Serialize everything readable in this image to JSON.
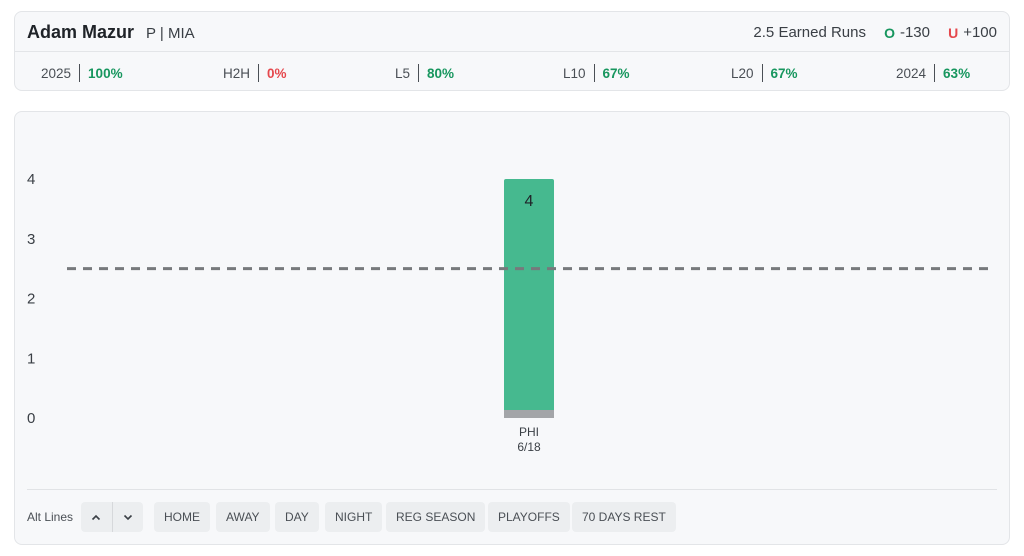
{
  "header": {
    "player_name": "Adam Mazur",
    "player_meta": "P | MIA",
    "prop_line": "2.5 Earned Runs",
    "over_icon": "O",
    "over_odds": "-130",
    "under_icon": "U",
    "under_odds": "+100"
  },
  "stats": [
    {
      "label": "2025",
      "value": "100%",
      "color": "#17965e"
    },
    {
      "label": "H2H",
      "value": "0%",
      "color": "#e5484d"
    },
    {
      "label": "L5",
      "value": "80%",
      "color": "#17965e"
    },
    {
      "label": "L10",
      "value": "67%",
      "color": "#17965e"
    },
    {
      "label": "L20",
      "value": "67%",
      "color": "#17965e"
    },
    {
      "label": "2024",
      "value": "63%",
      "color": "#17965e"
    }
  ],
  "colors": {
    "over": "#17965e",
    "under": "#e5484d",
    "bar": "#46b98f",
    "bar_base": "#a3a5a8",
    "line": "#77797c"
  },
  "chart_data": {
    "type": "bar",
    "categories": [
      "PHI 6/18"
    ],
    "x_labels": [
      {
        "opponent": "PHI",
        "date": "6/18"
      }
    ],
    "values": [
      4
    ],
    "data_labels": [
      "4"
    ],
    "y_ticks": [
      "0",
      "1",
      "2",
      "3",
      "4"
    ],
    "ylim": [
      0,
      4
    ],
    "threshold": 2.5,
    "grid": false,
    "title": "",
    "xlabel": "",
    "ylabel": ""
  },
  "toolbar": {
    "alt_lines_label": "Alt Lines",
    "up_icon": "chevron-up-icon",
    "down_icon": "chevron-down-icon",
    "filters": [
      "HOME",
      "AWAY",
      "DAY",
      "NIGHT",
      "REG SEASON",
      "PLAYOFFS",
      "70 DAYS REST"
    ]
  }
}
